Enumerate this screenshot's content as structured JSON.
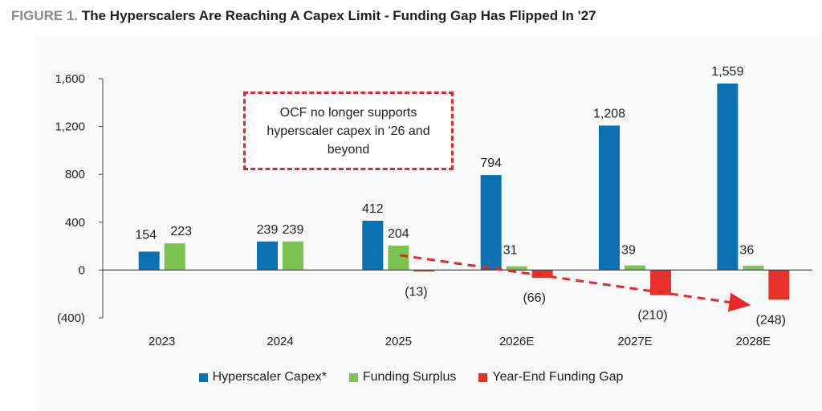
{
  "header": {
    "figure_label": "FIGURE 1.",
    "title": "The Hyperscalers Are Reaching A Capex Limit - Funding Gap Has Flipped In '27"
  },
  "annotation": {
    "text": "OCF no longer supports hyperscaler capex in '26 and beyond",
    "border_color": "#e8272b",
    "trend_arrow": {
      "from_category": "2025",
      "to_category": "2028E"
    }
  },
  "chart_data": {
    "type": "bar",
    "categories": [
      "2023",
      "2024",
      "2025",
      "2026E",
      "2027E",
      "2028E"
    ],
    "series": [
      {
        "name": "Hyperscaler Capex*",
        "color": "#0a71b3",
        "values": [
          154,
          239,
          412,
          794,
          1208,
          1559
        ],
        "labels": [
          "154",
          "239",
          "412",
          "794",
          "1,208",
          "1,559"
        ]
      },
      {
        "name": "Funding Surplus",
        "color": "#7cc451",
        "values": [
          223,
          239,
          204,
          31,
          39,
          36
        ],
        "labels": [
          "223",
          "239",
          "204",
          "31",
          "39",
          "36"
        ]
      },
      {
        "name": "Year-End Funding Gap",
        "color": "#e8312a",
        "values": [
          null,
          null,
          -13,
          -66,
          -210,
          -248
        ],
        "labels": [
          null,
          null,
          "(13)",
          "(66)",
          "(210)",
          "(248)"
        ]
      }
    ],
    "ylim": [
      -400,
      1600
    ],
    "yticks": [
      -400,
      0,
      400,
      800,
      1200,
      1600
    ],
    "ytick_labels": [
      "(400)",
      "0",
      "400",
      "800",
      "1,200",
      "1,600"
    ],
    "legend": "bottom",
    "grid": false
  }
}
